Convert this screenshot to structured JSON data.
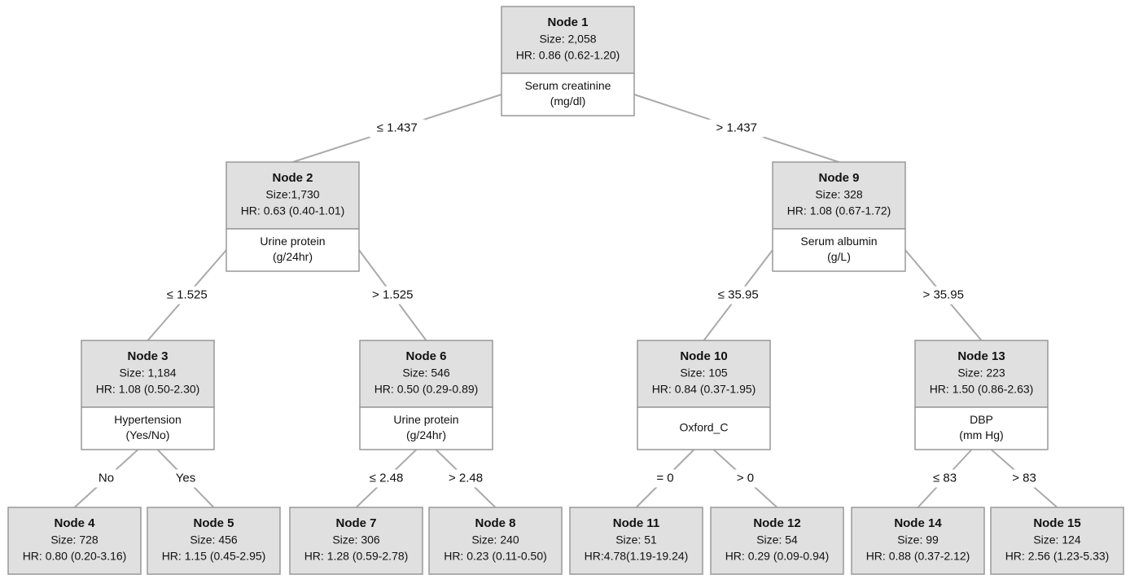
{
  "nodes": [
    {
      "title": "Node 1",
      "size": "Size: 2,058",
      "hr": "HR: 0.86 (0.62-1.20)",
      "split": [
        "Serum creatinine",
        "(mg/dl)"
      ]
    },
    {
      "title": "Node 2",
      "size": "Size:1,730",
      "hr": "HR: 0.63 (0.40-1.01)",
      "split": [
        "Urine protein",
        "(g/24hr)"
      ],
      "branch": "≤ 1.437"
    },
    {
      "title": "Node 9",
      "size": "Size: 328",
      "hr": "HR: 1.08 (0.67-1.72)",
      "split": [
        "Serum albumin",
        "(g/L)"
      ],
      "branch": "> 1.437"
    },
    {
      "title": "Node 3",
      "size": "Size: 1,184",
      "hr": "HR: 1.08 (0.50-2.30)",
      "split": [
        "Hypertension",
        "(Yes/No)"
      ],
      "branch": "≤ 1.525"
    },
    {
      "title": "Node 6",
      "size": "Size: 546",
      "hr": "HR: 0.50 (0.29-0.89)",
      "split": [
        "Urine protein",
        "(g/24hr)"
      ],
      "branch": "> 1.525"
    },
    {
      "title": "Node 10",
      "size": "Size: 105",
      "hr": "HR: 0.84 (0.37-1.95)",
      "split": [
        "Oxford_C"
      ],
      "branch": "≤ 35.95"
    },
    {
      "title": "Node 13",
      "size": "Size: 223",
      "hr": "HR: 1.50 (0.86-2.63)",
      "split": [
        "DBP",
        "(mm Hg)"
      ],
      "branch": "> 35.95"
    },
    {
      "title": "Node 4",
      "size": "Size: 728",
      "hr": "HR: 0.80 (0.20-3.16)",
      "branch": "No"
    },
    {
      "title": "Node 5",
      "size": "Size: 456",
      "hr": "HR: 1.15 (0.45-2.95)",
      "branch": "Yes"
    },
    {
      "title": "Node 7",
      "size": "Size: 306",
      "hr": "HR: 1.28 (0.59-2.78)",
      "branch": "≤ 2.48"
    },
    {
      "title": "Node 8",
      "size": "Size: 240",
      "hr": "HR: 0.23 (0.11-0.50)",
      "branch": "> 2.48"
    },
    {
      "title": "Node 11",
      "size": "Size: 51",
      "hr": "HR:4.78(1.19-19.24)",
      "branch": "= 0"
    },
    {
      "title": "Node 12",
      "size": "Size: 54",
      "hr": "HR: 0.29 (0.09-0.94)",
      "branch": "> 0"
    },
    {
      "title": "Node 14",
      "size": "Size: 99",
      "hr": "HR: 0.88 (0.37-2.12)",
      "branch": "≤ 83"
    },
    {
      "title": "Node 15",
      "size": "Size: 124",
      "hr": "HR: 2.56 (1.23-5.33)",
      "branch": "> 83"
    }
  ]
}
